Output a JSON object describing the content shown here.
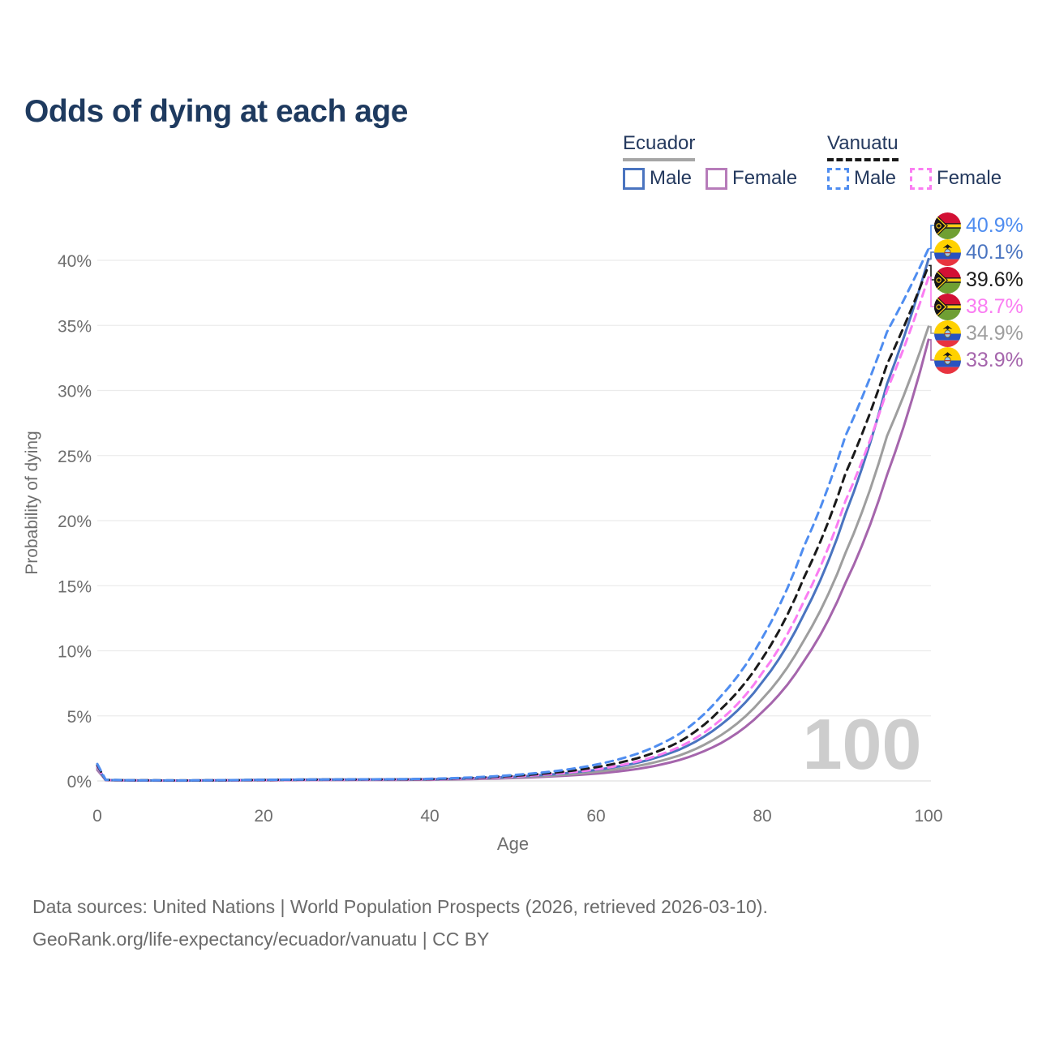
{
  "title": "Odds of dying at each age",
  "legend": {
    "groups": [
      {
        "label": "Ecuador",
        "line_style": "solid",
        "line_color": "#a6a6a6",
        "items": [
          {
            "label": "Male",
            "swatch_color": "#4a74c0",
            "dash": false
          },
          {
            "label": "Female",
            "swatch_color": "#b77cba",
            "dash": false
          }
        ]
      },
      {
        "label": "Vanuatu",
        "line_style": "dashed",
        "line_color": "#1a1a1a",
        "items": [
          {
            "label": "Male",
            "swatch_color": "#4f8df0",
            "dash": true
          },
          {
            "label": "Female",
            "swatch_color": "#fa7df2",
            "dash": true
          }
        ]
      }
    ]
  },
  "chart_data": {
    "type": "line",
    "title": "Odds of dying at each age",
    "xlabel": "Age",
    "ylabel": "Probability of dying",
    "x_ticks": [
      0,
      20,
      40,
      60,
      80,
      100
    ],
    "y_ticks_percent": [
      0,
      5,
      10,
      15,
      20,
      25,
      30,
      35,
      40
    ],
    "xlim": [
      0,
      100
    ],
    "ylim_percent": [
      0,
      43
    ],
    "grid": "horizontal-only",
    "hover_age_watermark": "100",
    "ages": [
      0,
      1,
      5,
      10,
      15,
      20,
      25,
      30,
      35,
      40,
      45,
      50,
      55,
      60,
      65,
      70,
      75,
      80,
      85,
      90,
      95,
      100
    ],
    "series": [
      {
        "name": "Vanuatu Male",
        "country": "Vanuatu",
        "sex": "Male",
        "color": "#4f8df0",
        "dash": "dashed",
        "end_label": "40.9%",
        "end_value_percent": 40.9,
        "values_percent": [
          1.3,
          0.09,
          0.05,
          0.04,
          0.06,
          0.09,
          0.11,
          0.12,
          0.13,
          0.16,
          0.27,
          0.45,
          0.75,
          1.25,
          2.1,
          3.6,
          6.5,
          11.0,
          18.0,
          26.5,
          34.5,
          40.9
        ]
      },
      {
        "name": "Ecuador Male",
        "country": "Ecuador",
        "sex": "Male",
        "color": "#4a74c0",
        "dash": "solid",
        "end_label": "40.1%",
        "end_value_percent": 40.1,
        "values_percent": [
          1.05,
          0.07,
          0.04,
          0.03,
          0.05,
          0.08,
          0.1,
          0.11,
          0.12,
          0.13,
          0.2,
          0.32,
          0.52,
          0.85,
          1.4,
          2.4,
          4.3,
          7.6,
          12.8,
          20.5,
          30.5,
          40.1
        ]
      },
      {
        "name": "Vanuatu Both sexes",
        "country": "Vanuatu",
        "sex": "Both",
        "color": "#1a1a1a",
        "dash": "dashed",
        "end_label": "39.6%",
        "end_value_percent": 39.6,
        "values_percent": [
          1.2,
          0.08,
          0.045,
          0.035,
          0.05,
          0.08,
          0.1,
          0.11,
          0.12,
          0.14,
          0.24,
          0.39,
          0.64,
          1.05,
          1.75,
          3.0,
          5.5,
          9.4,
          15.6,
          23.6,
          32.0,
          39.6
        ]
      },
      {
        "name": "Vanuatu Female",
        "country": "Vanuatu",
        "sex": "Female",
        "color": "#fa7df2",
        "dash": "dashed",
        "end_label": "38.7%",
        "end_value_percent": 38.7,
        "values_percent": [
          1.1,
          0.07,
          0.04,
          0.03,
          0.045,
          0.065,
          0.08,
          0.09,
          0.1,
          0.12,
          0.2,
          0.33,
          0.55,
          0.88,
          1.5,
          2.6,
          4.7,
          8.3,
          13.8,
          21.5,
          30.0,
          38.7
        ]
      },
      {
        "name": "Ecuador Both sexes",
        "country": "Ecuador",
        "sex": "Both",
        "color": "#9e9e9e",
        "dash": "solid",
        "end_label": "34.9%",
        "end_value_percent": 34.9,
        "values_percent": [
          0.95,
          0.065,
          0.035,
          0.028,
          0.04,
          0.06,
          0.08,
          0.09,
          0.1,
          0.11,
          0.17,
          0.27,
          0.43,
          0.7,
          1.15,
          1.95,
          3.5,
          6.3,
          10.8,
          17.5,
          26.5,
          34.9
        ]
      },
      {
        "name": "Ecuador Female",
        "country": "Ecuador",
        "sex": "Female",
        "color": "#a565ac",
        "dash": "solid",
        "end_label": "33.9%",
        "end_value_percent": 33.9,
        "values_percent": [
          0.85,
          0.06,
          0.03,
          0.025,
          0.035,
          0.05,
          0.06,
          0.07,
          0.08,
          0.09,
          0.14,
          0.22,
          0.36,
          0.56,
          0.92,
          1.6,
          2.9,
          5.3,
          9.2,
          15.2,
          23.5,
          33.9
        ]
      }
    ]
  },
  "footer": {
    "line1": "Data sources: United Nations | World Population Prospects (2026, retrieved 2026-03-10).",
    "line2": "GeoRank.org/life-expectancy/ecuador/vanuatu | CC BY"
  }
}
